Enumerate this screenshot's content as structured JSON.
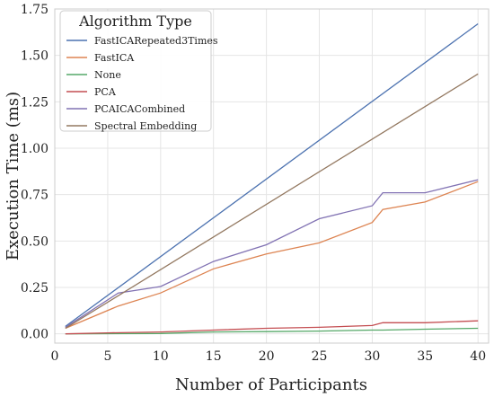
{
  "chart_data": {
    "type": "line",
    "xlabel": "Number of Participants",
    "ylabel": "Execution Time (ms)",
    "xlim": [
      0,
      41
    ],
    "ylim": [
      -0.05,
      1.75
    ],
    "xticks": [
      0,
      5,
      10,
      15,
      20,
      25,
      30,
      35,
      40
    ],
    "xtick_labels": [
      "0",
      "5",
      "10",
      "15",
      "20",
      "25",
      "30",
      "35",
      "40"
    ],
    "yticks": [
      0.0,
      0.25,
      0.5,
      0.75,
      1.0,
      1.25,
      1.5,
      1.75
    ],
    "ytick_labels": [
      "0.00",
      "0.25",
      "0.50",
      "0.75",
      "1.00",
      "1.25",
      "1.50",
      "1.75"
    ],
    "grid": true,
    "legend": {
      "title": "Algorithm Type",
      "placement": "top-left"
    },
    "series": [
      {
        "name": "FastICARepeated3Times",
        "color": "#4c72b0",
        "x": [
          1,
          40
        ],
        "y": [
          0.04,
          1.67
        ]
      },
      {
        "name": "FastICA",
        "color": "#dd8452",
        "x": [
          1,
          6,
          10,
          15,
          20,
          25,
          30,
          31,
          35,
          40
        ],
        "y": [
          0.03,
          0.15,
          0.22,
          0.35,
          0.43,
          0.49,
          0.6,
          0.67,
          0.71,
          0.82
        ]
      },
      {
        "name": "None",
        "color": "#55a868",
        "x": [
          1,
          10,
          15,
          20,
          25,
          30,
          31,
          35,
          40
        ],
        "y": [
          0.0,
          0.002,
          0.01,
          0.012,
          0.015,
          0.02,
          0.02,
          0.025,
          0.03
        ]
      },
      {
        "name": "PCA",
        "color": "#c44e52",
        "x": [
          1,
          5,
          10,
          15,
          20,
          25,
          30,
          31,
          35,
          40
        ],
        "y": [
          0.0,
          0.005,
          0.01,
          0.02,
          0.03,
          0.035,
          0.045,
          0.06,
          0.06,
          0.07
        ]
      },
      {
        "name": "PCAICACombined",
        "color": "#8172b3",
        "x": [
          1,
          6,
          10,
          15,
          20,
          25,
          30,
          31,
          35,
          40
        ],
        "y": [
          0.035,
          0.22,
          0.255,
          0.39,
          0.48,
          0.62,
          0.69,
          0.76,
          0.76,
          0.83
        ]
      },
      {
        "name": "Spectral Embedding",
        "color": "#937860",
        "x": [
          1,
          40
        ],
        "y": [
          0.03,
          1.4
        ]
      }
    ]
  }
}
